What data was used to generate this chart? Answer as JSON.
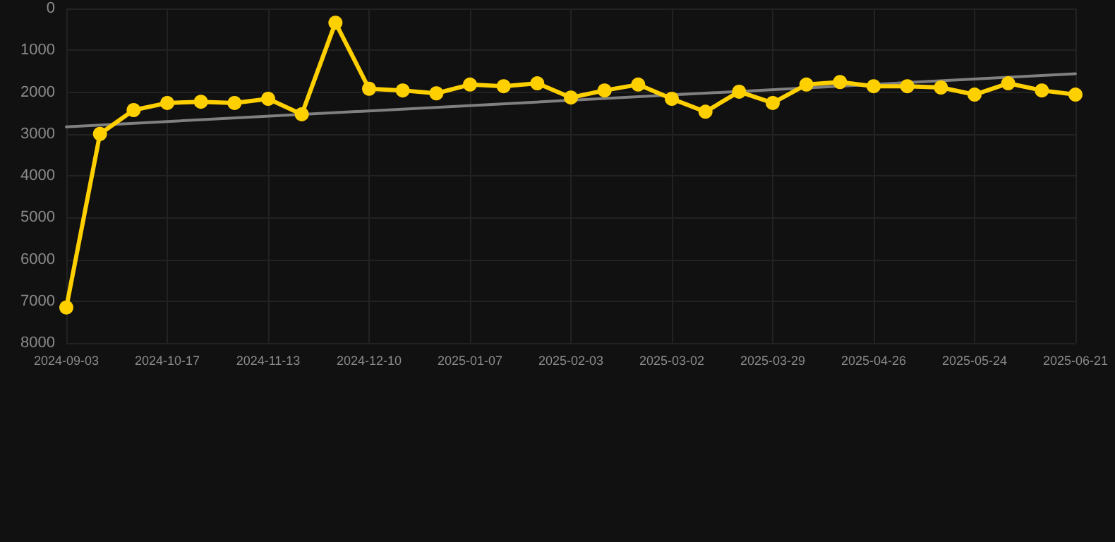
{
  "chart_data": {
    "type": "line",
    "categories": [
      "2024-09-03",
      null,
      null,
      "2024-10-17",
      null,
      null,
      "2024-11-13",
      null,
      null,
      "2024-12-10",
      null,
      null,
      "2025-01-07",
      null,
      null,
      "2025-02-03",
      null,
      null,
      "2025-03-02",
      null,
      null,
      "2025-03-29",
      null,
      null,
      "2025-04-26",
      null,
      null,
      "2025-05-24",
      null,
      null,
      "2025-06-21"
    ],
    "series": [
      {
        "color": "#ffd000",
        "marker": "circle",
        "values": [
          7150,
          3000,
          2430,
          2260,
          2230,
          2260,
          2160,
          2530,
          340,
          1920,
          1960,
          2030,
          1820,
          1860,
          1790,
          2130,
          1960,
          1820,
          2160,
          2470,
          1990,
          2260,
          1820,
          1760,
          1860,
          1860,
          1890,
          2060,
          1790,
          1960,
          2060
        ]
      },
      {
        "type": "line",
        "color": "#808080",
        "marker": "none",
        "values": [
          2830,
          null,
          null,
          null,
          null,
          null,
          null,
          null,
          null,
          null,
          null,
          null,
          null,
          null,
          null,
          null,
          null,
          null,
          null,
          null,
          null,
          null,
          null,
          null,
          null,
          null,
          null,
          null,
          null,
          null,
          1560
        ]
      }
    ],
    "ylim": [
      8000,
      0
    ],
    "yticks": [
      0,
      1000,
      2000,
      3000,
      4000,
      5000,
      6000,
      7000,
      8000
    ],
    "grid": true
  }
}
